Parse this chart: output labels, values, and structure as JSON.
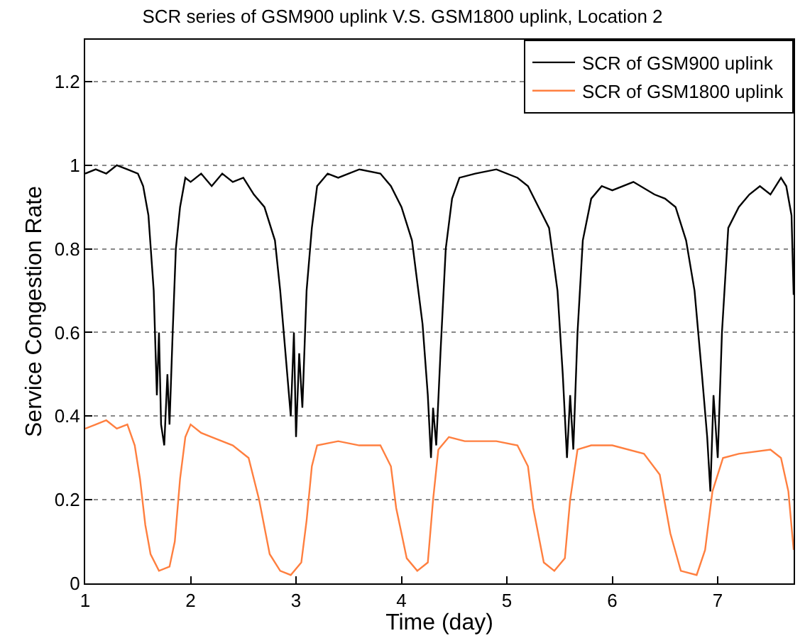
{
  "chart_data": {
    "type": "line",
    "title": "SCR series of GSM900 uplink V.S. GSM1800 uplink, Location 2",
    "xlabel": "Time (day)",
    "ylabel": "Service Congestion Rate",
    "xlim": [
      1,
      7.72
    ],
    "ylim": [
      0,
      1.3
    ],
    "xticks": [
      1,
      2,
      3,
      4,
      5,
      6,
      7
    ],
    "yticks": [
      0,
      0.2,
      0.4,
      0.6,
      0.8,
      1,
      1.2
    ],
    "grid": "y",
    "legend": "top right",
    "series": [
      {
        "name": "SCR of GSM900 uplink",
        "color": "#000000",
        "x": [
          1,
          1.1,
          1.2,
          1.3,
          1.4,
          1.5,
          1.55,
          1.6,
          1.65,
          1.68,
          1.7,
          1.72,
          1.75,
          1.78,
          1.8,
          1.83,
          1.86,
          1.9,
          1.95,
          2.0,
          2.1,
          2.2,
          2.3,
          2.4,
          2.5,
          2.6,
          2.7,
          2.8,
          2.85,
          2.9,
          2.95,
          2.98,
          3.0,
          3.03,
          3.06,
          3.1,
          3.15,
          3.2,
          3.3,
          3.4,
          3.6,
          3.8,
          3.9,
          4.0,
          4.1,
          4.2,
          4.25,
          4.28,
          4.3,
          4.33,
          4.37,
          4.42,
          4.48,
          4.55,
          4.7,
          4.9,
          5.1,
          5.2,
          5.3,
          5.4,
          5.48,
          5.53,
          5.57,
          5.6,
          5.63,
          5.67,
          5.72,
          5.8,
          5.9,
          6.0,
          6.2,
          6.4,
          6.5,
          6.6,
          6.7,
          6.78,
          6.85,
          6.9,
          6.93,
          6.96,
          7.0,
          7.04,
          7.1,
          7.2,
          7.3,
          7.4,
          7.5,
          7.6,
          7.65,
          7.7,
          7.72
        ],
        "values": [
          0.98,
          0.99,
          0.98,
          1.0,
          0.99,
          0.98,
          0.95,
          0.88,
          0.7,
          0.45,
          0.6,
          0.38,
          0.33,
          0.5,
          0.38,
          0.6,
          0.8,
          0.9,
          0.97,
          0.96,
          0.98,
          0.95,
          0.98,
          0.96,
          0.97,
          0.93,
          0.9,
          0.82,
          0.7,
          0.55,
          0.4,
          0.6,
          0.35,
          0.55,
          0.42,
          0.7,
          0.85,
          0.95,
          0.98,
          0.97,
          0.99,
          0.98,
          0.95,
          0.9,
          0.82,
          0.62,
          0.45,
          0.3,
          0.42,
          0.33,
          0.55,
          0.8,
          0.92,
          0.97,
          0.98,
          0.99,
          0.97,
          0.95,
          0.9,
          0.85,
          0.7,
          0.5,
          0.3,
          0.45,
          0.32,
          0.6,
          0.82,
          0.92,
          0.95,
          0.94,
          0.96,
          0.93,
          0.92,
          0.9,
          0.82,
          0.7,
          0.5,
          0.35,
          0.22,
          0.45,
          0.3,
          0.6,
          0.85,
          0.9,
          0.93,
          0.95,
          0.93,
          0.97,
          0.95,
          0.88,
          0.69
        ]
      },
      {
        "name": "SCR of GSM1800 uplink",
        "color": "#ff7f3f",
        "x": [
          1,
          1.1,
          1.2,
          1.3,
          1.4,
          1.47,
          1.52,
          1.57,
          1.62,
          1.7,
          1.8,
          1.85,
          1.9,
          1.95,
          2.0,
          2.1,
          2.2,
          2.4,
          2.55,
          2.65,
          2.75,
          2.85,
          2.95,
          3.05,
          3.1,
          3.15,
          3.2,
          3.4,
          3.6,
          3.8,
          3.9,
          3.95,
          4.05,
          4.15,
          4.25,
          4.3,
          4.35,
          4.45,
          4.6,
          4.9,
          5.1,
          5.2,
          5.25,
          5.35,
          5.45,
          5.55,
          5.6,
          5.67,
          5.8,
          6.0,
          6.3,
          6.45,
          6.55,
          6.65,
          6.8,
          6.88,
          6.95,
          7.05,
          7.2,
          7.5,
          7.6,
          7.67,
          7.72
        ],
        "values": [
          0.37,
          0.38,
          0.39,
          0.37,
          0.38,
          0.33,
          0.25,
          0.14,
          0.07,
          0.03,
          0.04,
          0.1,
          0.25,
          0.35,
          0.38,
          0.36,
          0.35,
          0.33,
          0.3,
          0.2,
          0.07,
          0.03,
          0.02,
          0.05,
          0.15,
          0.28,
          0.33,
          0.34,
          0.33,
          0.33,
          0.28,
          0.18,
          0.06,
          0.03,
          0.05,
          0.2,
          0.32,
          0.35,
          0.34,
          0.34,
          0.33,
          0.28,
          0.18,
          0.05,
          0.03,
          0.06,
          0.2,
          0.32,
          0.33,
          0.33,
          0.31,
          0.26,
          0.12,
          0.03,
          0.02,
          0.08,
          0.22,
          0.3,
          0.31,
          0.32,
          0.3,
          0.22,
          0.08
        ]
      }
    ]
  }
}
